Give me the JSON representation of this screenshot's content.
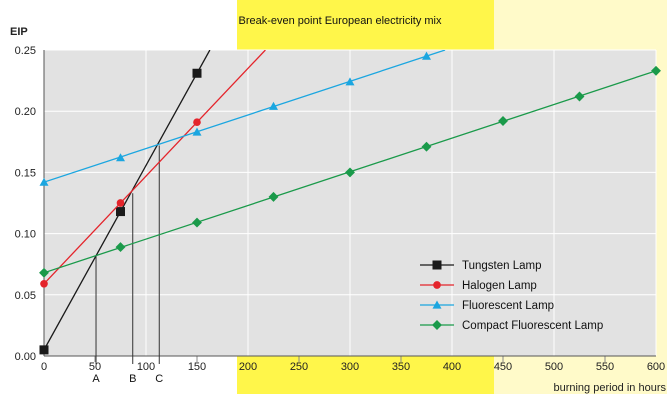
{
  "chart_data": {
    "type": "line",
    "title": "Break-even point European electricity mix",
    "ylabel": "EIP",
    "xlabel": "burning period in hours",
    "xlim": [
      0,
      600
    ],
    "ylim": [
      0,
      0.25
    ],
    "x_ticks": [
      "0",
      "50",
      "100",
      "150",
      "200",
      "250",
      "300",
      "350",
      "400",
      "450",
      "500",
      "550",
      "600"
    ],
    "y_ticks": [
      "0.00",
      "0.05",
      "0.10",
      "0.15",
      "0.20",
      "0.25"
    ],
    "grid": true,
    "legend_position": "bottom-right",
    "series": [
      {
        "name": "Tungsten Lamp",
        "color": "#1a1a1a",
        "marker": "square",
        "points": [
          [
            0,
            0.005
          ],
          [
            75,
            0.118
          ],
          [
            150,
            0.231
          ]
        ]
      },
      {
        "name": "Halogen Lamp",
        "color": "#e4242b",
        "marker": "circle",
        "points": [
          [
            0,
            0.059
          ],
          [
            75,
            0.125
          ],
          [
            150,
            0.191
          ]
        ]
      },
      {
        "name": "Fluorescent Lamp",
        "color": "#1ba6e0",
        "marker": "triangle",
        "points": [
          [
            0,
            0.142
          ],
          [
            75,
            0.162
          ],
          [
            150,
            0.183
          ],
          [
            225,
            0.204
          ],
          [
            300,
            0.224
          ],
          [
            375,
            0.245
          ]
        ]
      },
      {
        "name": "Compact Fluorescent Lamp",
        "color": "#1a9a4a",
        "marker": "diamond",
        "points": [
          [
            0,
            0.068
          ],
          [
            75,
            0.089
          ],
          [
            150,
            0.109
          ],
          [
            225,
            0.13
          ],
          [
            300,
            0.15
          ],
          [
            375,
            0.171
          ],
          [
            450,
            0.192
          ],
          [
            525,
            0.212
          ],
          [
            600,
            0.233
          ]
        ]
      }
    ],
    "break_even_markers": [
      {
        "label": "A",
        "x": 51,
        "y": 0.082
      },
      {
        "label": "B",
        "x": 87,
        "y": 0.133
      },
      {
        "label": "C",
        "x": 113,
        "y": 0.172
      }
    ]
  }
}
